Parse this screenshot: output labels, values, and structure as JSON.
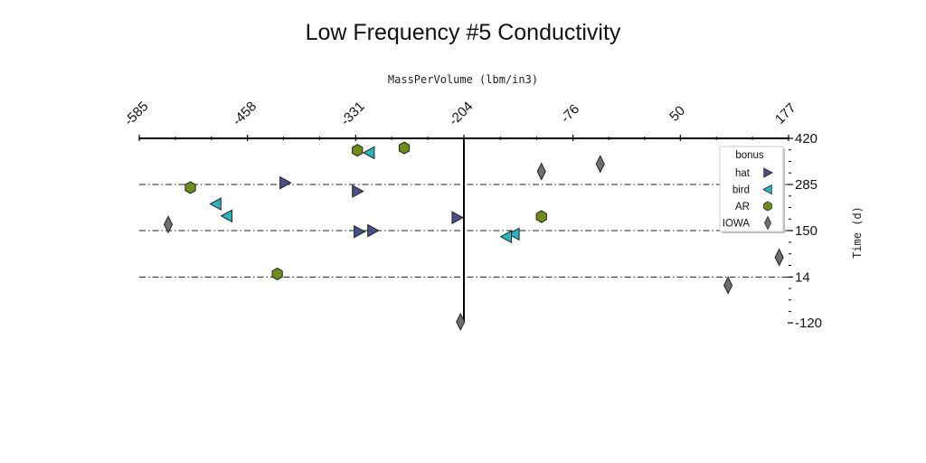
{
  "chart_data": {
    "type": "scatter",
    "title": "Low Frequency #5 Conductivity",
    "xlabel": "MassPerVolume (lbm/in3)",
    "ylabel": "Time (d)",
    "x_axis_position": "top",
    "y_axis_position": "right",
    "xlim": [
      -585,
      177
    ],
    "ylim": [
      -120,
      420
    ],
    "x_ticks": [
      "-585",
      "-458",
      "-331",
      "-204",
      "-76",
      "50",
      "177"
    ],
    "y_ticks": [
      "420",
      "285",
      "150",
      "14",
      "-120"
    ],
    "x_tick_values": [
      -585,
      -458,
      -331,
      -204,
      -76,
      50,
      177
    ],
    "y_tick_values": [
      420,
      285,
      150,
      14,
      -120
    ],
    "horizontal_dashed_gridlines_at": [
      285,
      150,
      14
    ],
    "vertical_reference_line_at": -204,
    "legend": {
      "title": "bonus",
      "placement": "upper right"
    },
    "series": [
      {
        "name": "hat",
        "marker": "triangle-right",
        "color": "#4a4f8a",
        "points": [
          [
            -414,
            290
          ],
          [
            -329,
            265
          ],
          [
            -327,
            147
          ],
          [
            -311,
            150
          ],
          [
            -212,
            188
          ]
        ]
      },
      {
        "name": "bird",
        "marker": "triangle-left",
        "color": "#2ab3c0",
        "points": [
          [
            -315,
            378
          ],
          [
            -495,
            228
          ],
          [
            -482,
            193
          ],
          [
            -145,
            140
          ],
          [
            -154,
            132
          ]
        ]
      },
      {
        "name": "AR",
        "marker": "hexagon",
        "color": "#6e8c1a",
        "points": [
          [
            -329,
            385
          ],
          [
            -274,
            392
          ],
          [
            -525,
            276
          ],
          [
            -113,
            191
          ],
          [
            -423,
            23
          ]
        ]
      },
      {
        "name": "IOWA",
        "marker": "diamond",
        "color": "#6f6f6f",
        "points": [
          [
            -113,
            323
          ],
          [
            -44,
            345
          ],
          [
            -551,
            168
          ],
          [
            166,
            72
          ],
          [
            106,
            -10
          ],
          [
            -208,
            -117
          ]
        ]
      }
    ]
  }
}
